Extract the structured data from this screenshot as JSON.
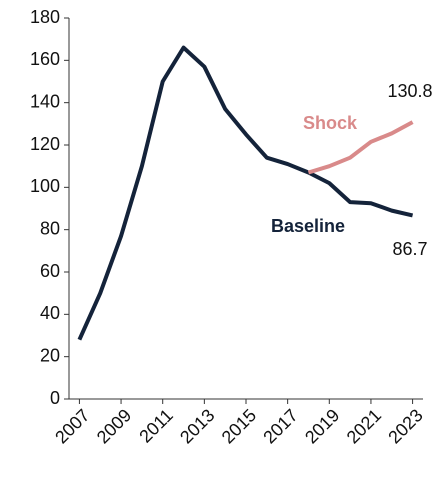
{
  "chart_data": {
    "type": "line",
    "x": [
      2007,
      2008,
      2009,
      2010,
      2011,
      2012,
      2013,
      2014,
      2015,
      2016,
      2017,
      2018,
      2019,
      2020,
      2021,
      2022,
      2023
    ],
    "series": [
      {
        "name": "Baseline",
        "color": "#14233a",
        "values": [
          28,
          50,
          77,
          110,
          150,
          166,
          157,
          137,
          125,
          114,
          111,
          107,
          102,
          93,
          92.5,
          89,
          86.7
        ]
      },
      {
        "name": "Shock",
        "color": "#d98a8a",
        "values": [
          null,
          null,
          null,
          null,
          null,
          null,
          null,
          null,
          null,
          null,
          null,
          107,
          110,
          114,
          121.5,
          125.5,
          130.8
        ]
      }
    ],
    "xlim": [
      2006.5,
      2023.5
    ],
    "xticks": [
      2007,
      2009,
      2011,
      2013,
      2015,
      2017,
      2019,
      2021,
      2023
    ],
    "ylim": [
      0,
      180
    ],
    "yticks": [
      0,
      20,
      40,
      60,
      80,
      100,
      120,
      140,
      160,
      180
    ]
  }
}
